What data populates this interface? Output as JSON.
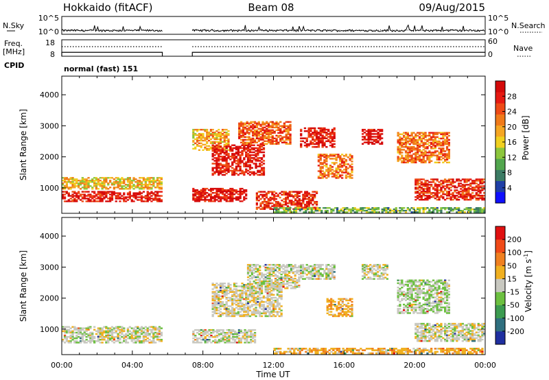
{
  "header": {
    "station": "Hokkaido (fitACF)",
    "beam": "Beam 08",
    "date": "09/Aug/2015"
  },
  "chart_data": [
    {
      "type": "line",
      "panel": "noise",
      "left_label": "N.Sky",
      "right_label": "N.Search",
      "left_ticks": [
        "10^5",
        "10^0"
      ],
      "right_ticks": [
        "10^5",
        "10^0"
      ],
      "data_gap_utc": [
        5.7,
        7.4
      ],
      "sky_baseline": 0.15,
      "search_baseline": 0.2
    },
    {
      "type": "line",
      "panel": "frequency",
      "left_label_lines": [
        "Freq.",
        "[MHz]"
      ],
      "right_label": "Nave",
      "left_ticks": [
        "18",
        "8"
      ],
      "right_ticks": [
        "60",
        "0"
      ],
      "freq_mhz": 10.4,
      "nave": 35,
      "data_gap_utc": [
        5.7,
        7.4
      ]
    },
    {
      "type": "table",
      "panel": "cpid",
      "label": "CPID",
      "value": "normal (fast) 151"
    },
    {
      "type": "heatmap",
      "panel": "power",
      "ylabel": "Slant Range [km]",
      "yticks": [
        1000,
        2000,
        3000,
        4000
      ],
      "ylim": [
        180,
        4600
      ],
      "xlim_utc": [
        0,
        24
      ],
      "colorbar": {
        "label": "Power [dB]",
        "ticks": [
          "4",
          "8",
          "12",
          "16",
          "20",
          "24",
          "28"
        ],
        "colors": [
          "#0f0fff",
          "#1f3fa6",
          "#3c7b64",
          "#52a64e",
          "#8cc63c",
          "#f0d020",
          "#f5a623",
          "#f07a1a",
          "#ee4a16",
          "#e61a12",
          "#d40a0a"
        ]
      },
      "echo_regions": [
        {
          "t0": 0.0,
          "t1": 5.7,
          "r0": 550,
          "r1": 900,
          "level": 0.9
        },
        {
          "t0": 0.0,
          "t1": 5.7,
          "r0": 950,
          "r1": 1350,
          "level": 0.55
        },
        {
          "t0": 7.4,
          "t1": 10.5,
          "r0": 550,
          "r1": 1000,
          "level": 0.92
        },
        {
          "t0": 7.4,
          "t1": 9.5,
          "r0": 2200,
          "r1": 2900,
          "level": 0.6
        },
        {
          "t0": 8.5,
          "t1": 11.5,
          "r0": 1400,
          "r1": 2400,
          "level": 0.9
        },
        {
          "t0": 10.0,
          "t1": 13.0,
          "r0": 2400,
          "r1": 3150,
          "level": 0.75
        },
        {
          "t0": 11.0,
          "t1": 14.5,
          "r0": 300,
          "r1": 900,
          "level": 0.85
        },
        {
          "t0": 13.5,
          "t1": 15.5,
          "r0": 2300,
          "r1": 2950,
          "level": 0.9
        },
        {
          "t0": 14.5,
          "t1": 16.5,
          "r0": 1300,
          "r1": 2100,
          "level": 0.7
        },
        {
          "t0": 17.0,
          "t1": 18.2,
          "r0": 2400,
          "r1": 2900,
          "level": 0.95
        },
        {
          "t0": 19.0,
          "t1": 22.0,
          "r0": 1800,
          "r1": 2800,
          "level": 0.7
        },
        {
          "t0": 20.0,
          "t1": 24.0,
          "r0": 600,
          "r1": 1300,
          "level": 0.85
        },
        {
          "t0": 12.0,
          "t1": 24.0,
          "r0": 200,
          "r1": 380,
          "level": 0.35
        }
      ]
    },
    {
      "type": "heatmap",
      "panel": "velocity",
      "ylabel": "Slant Range [km]",
      "xlabel": "Time UT",
      "yticks": [
        1000,
        2000,
        3000,
        4000
      ],
      "ylim": [
        180,
        4600
      ],
      "xlim_utc": [
        0,
        24
      ],
      "xticks": [
        "00:00",
        "04:00",
        "08:00",
        "12:00",
        "16:00",
        "20:00",
        "00:00"
      ],
      "colorbar": {
        "label": "Velocity [m s^-1]",
        "ticks": [
          "200",
          "100",
          "50",
          "15",
          "-15",
          "-50",
          "-100",
          "-200"
        ],
        "colors": [
          "#1f2fa0",
          "#2f6f7f",
          "#3c9b50",
          "#6cc040",
          "#c8c8c0",
          "#f0b020",
          "#f08020",
          "#f04a18",
          "#e01010"
        ]
      },
      "echo_regions": [
        {
          "t0": 0.0,
          "t1": 5.7,
          "r0": 550,
          "r1": 1100,
          "level": 0.5
        },
        {
          "t0": 7.4,
          "t1": 11.0,
          "r0": 550,
          "r1": 1000,
          "level": 0.5
        },
        {
          "t0": 8.5,
          "t1": 12.5,
          "r0": 1400,
          "r1": 2500,
          "level": 0.52
        },
        {
          "t0": 10.5,
          "t1": 13.5,
          "r0": 2300,
          "r1": 3100,
          "level": 0.5
        },
        {
          "t0": 13.5,
          "t1": 15.5,
          "r0": 2600,
          "r1": 3100,
          "level": 0.48
        },
        {
          "t0": 15.0,
          "t1": 16.5,
          "r0": 1400,
          "r1": 2000,
          "level": 0.62
        },
        {
          "t0": 17.0,
          "t1": 18.5,
          "r0": 2600,
          "r1": 3100,
          "level": 0.5
        },
        {
          "t0": 19.0,
          "t1": 22.0,
          "r0": 1500,
          "r1": 2600,
          "level": 0.47
        },
        {
          "t0": 20.0,
          "t1": 24.0,
          "r0": 600,
          "r1": 1200,
          "level": 0.5
        },
        {
          "t0": 12.0,
          "t1": 24.0,
          "r0": 200,
          "r1": 400,
          "level": 0.62
        }
      ]
    }
  ]
}
